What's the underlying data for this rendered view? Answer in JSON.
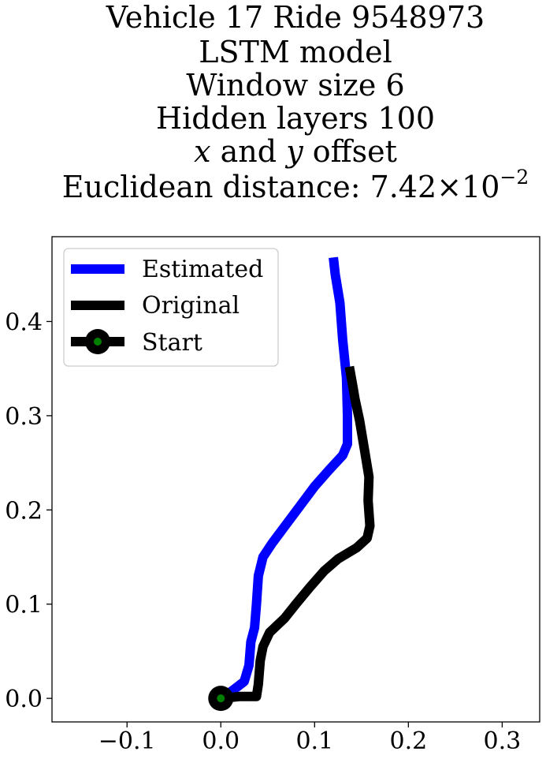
{
  "chart_data": {
    "type": "line",
    "title_lines": [
      "Vehicle 17 Ride 9548973",
      "LSTM model",
      "Window size 6",
      "Hidden layers 100"
    ],
    "title_offset_line": {
      "x_var": "x",
      "and_text": " and ",
      "y_var": "y",
      "tail": " offset"
    },
    "title_distance_line": {
      "prefix": "Euclidean distance: ",
      "mantissa": "7.42",
      "times": "×",
      "base": "10",
      "exponent": "−2"
    },
    "xlim": [
      -0.18,
      0.34
    ],
    "ylim": [
      -0.025,
      0.49
    ],
    "x_ticks": [
      -0.1,
      0.0,
      0.1,
      0.2,
      0.3
    ],
    "x_tick_labels": [
      "−0.1",
      "0.0",
      "0.1",
      "0.2",
      "0.3"
    ],
    "y_ticks": [
      0.0,
      0.1,
      0.2,
      0.3,
      0.4
    ],
    "y_tick_labels": [
      "0.0",
      "0.1",
      "0.2",
      "0.3",
      "0.4"
    ],
    "grid": false,
    "legend_position": "upper-left",
    "series": [
      {
        "name": "Estimated",
        "color": "#0000ff",
        "points": [
          [
            0.0,
            0.0
          ],
          [
            0.012,
            0.008
          ],
          [
            0.025,
            0.018
          ],
          [
            0.03,
            0.035
          ],
          [
            0.032,
            0.06
          ],
          [
            0.036,
            0.075
          ],
          [
            0.038,
            0.1
          ],
          [
            0.04,
            0.13
          ],
          [
            0.045,
            0.15
          ],
          [
            0.055,
            0.165
          ],
          [
            0.07,
            0.185
          ],
          [
            0.085,
            0.205
          ],
          [
            0.1,
            0.225
          ],
          [
            0.115,
            0.242
          ],
          [
            0.13,
            0.258
          ],
          [
            0.135,
            0.27
          ],
          [
            0.135,
            0.3
          ],
          [
            0.134,
            0.34
          ],
          [
            0.13,
            0.38
          ],
          [
            0.127,
            0.42
          ],
          [
            0.122,
            0.45
          ],
          [
            0.12,
            0.468
          ]
        ]
      },
      {
        "name": "Original",
        "color": "#000000",
        "points": [
          [
            0.0,
            0.0
          ],
          [
            0.02,
            0.002
          ],
          [
            0.038,
            0.002
          ],
          [
            0.04,
            0.015
          ],
          [
            0.042,
            0.04
          ],
          [
            0.045,
            0.055
          ],
          [
            0.052,
            0.07
          ],
          [
            0.068,
            0.085
          ],
          [
            0.08,
            0.1
          ],
          [
            0.095,
            0.118
          ],
          [
            0.11,
            0.135
          ],
          [
            0.125,
            0.148
          ],
          [
            0.145,
            0.16
          ],
          [
            0.156,
            0.17
          ],
          [
            0.159,
            0.183
          ],
          [
            0.157,
            0.21
          ],
          [
            0.158,
            0.235
          ],
          [
            0.153,
            0.265
          ],
          [
            0.148,
            0.295
          ],
          [
            0.143,
            0.318
          ],
          [
            0.141,
            0.33
          ],
          [
            0.137,
            0.352
          ]
        ]
      }
    ],
    "start": {
      "name": "Start",
      "x": 0.0,
      "y": 0.0,
      "outer_color": "#000000",
      "inner_color": "#008000"
    }
  }
}
